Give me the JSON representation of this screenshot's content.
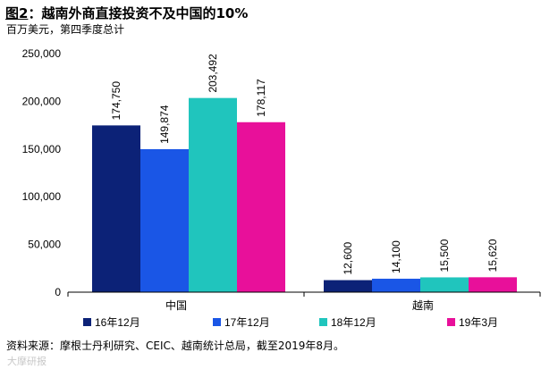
{
  "header": {
    "figure_number": "图2",
    "title_text": "：越南外商直接投资不及中国的10%",
    "unit": "百万美元，第四季度总计"
  },
  "footer": {
    "source": "资料来源：摩根士丹利研究、CEIC、越南统计总局，截至2019年8月。",
    "watermark": "大摩研报"
  },
  "chart_data": {
    "type": "bar",
    "categories": [
      "中国",
      "越南"
    ],
    "series": [
      {
        "name": "16年12月",
        "values": [
          174750,
          12600
        ],
        "color": "#0c2277"
      },
      {
        "name": "17年12月",
        "values": [
          149874,
          14100
        ],
        "color": "#1a56e6"
      },
      {
        "name": "18年12月",
        "values": [
          203492,
          15500
        ],
        "color": "#20c5bd"
      },
      {
        "name": "19年3月",
        "values": [
          178117,
          15620
        ],
        "color": "#e8109a"
      }
    ],
    "ylim": [
      0,
      250000
    ],
    "yticks": [
      0,
      50000,
      100000,
      150000,
      200000,
      250000
    ],
    "ytick_labels": [
      "0",
      "50,000",
      "100,000",
      "150,000",
      "200,000",
      "250,000"
    ],
    "value_labels": [
      [
        "174,750",
        "12,600"
      ],
      [
        "149,874",
        "14,100"
      ],
      [
        "203,492",
        "15,500"
      ],
      [
        "178,117",
        "15,620"
      ]
    ],
    "grid": false,
    "legend_position": "bottom"
  }
}
